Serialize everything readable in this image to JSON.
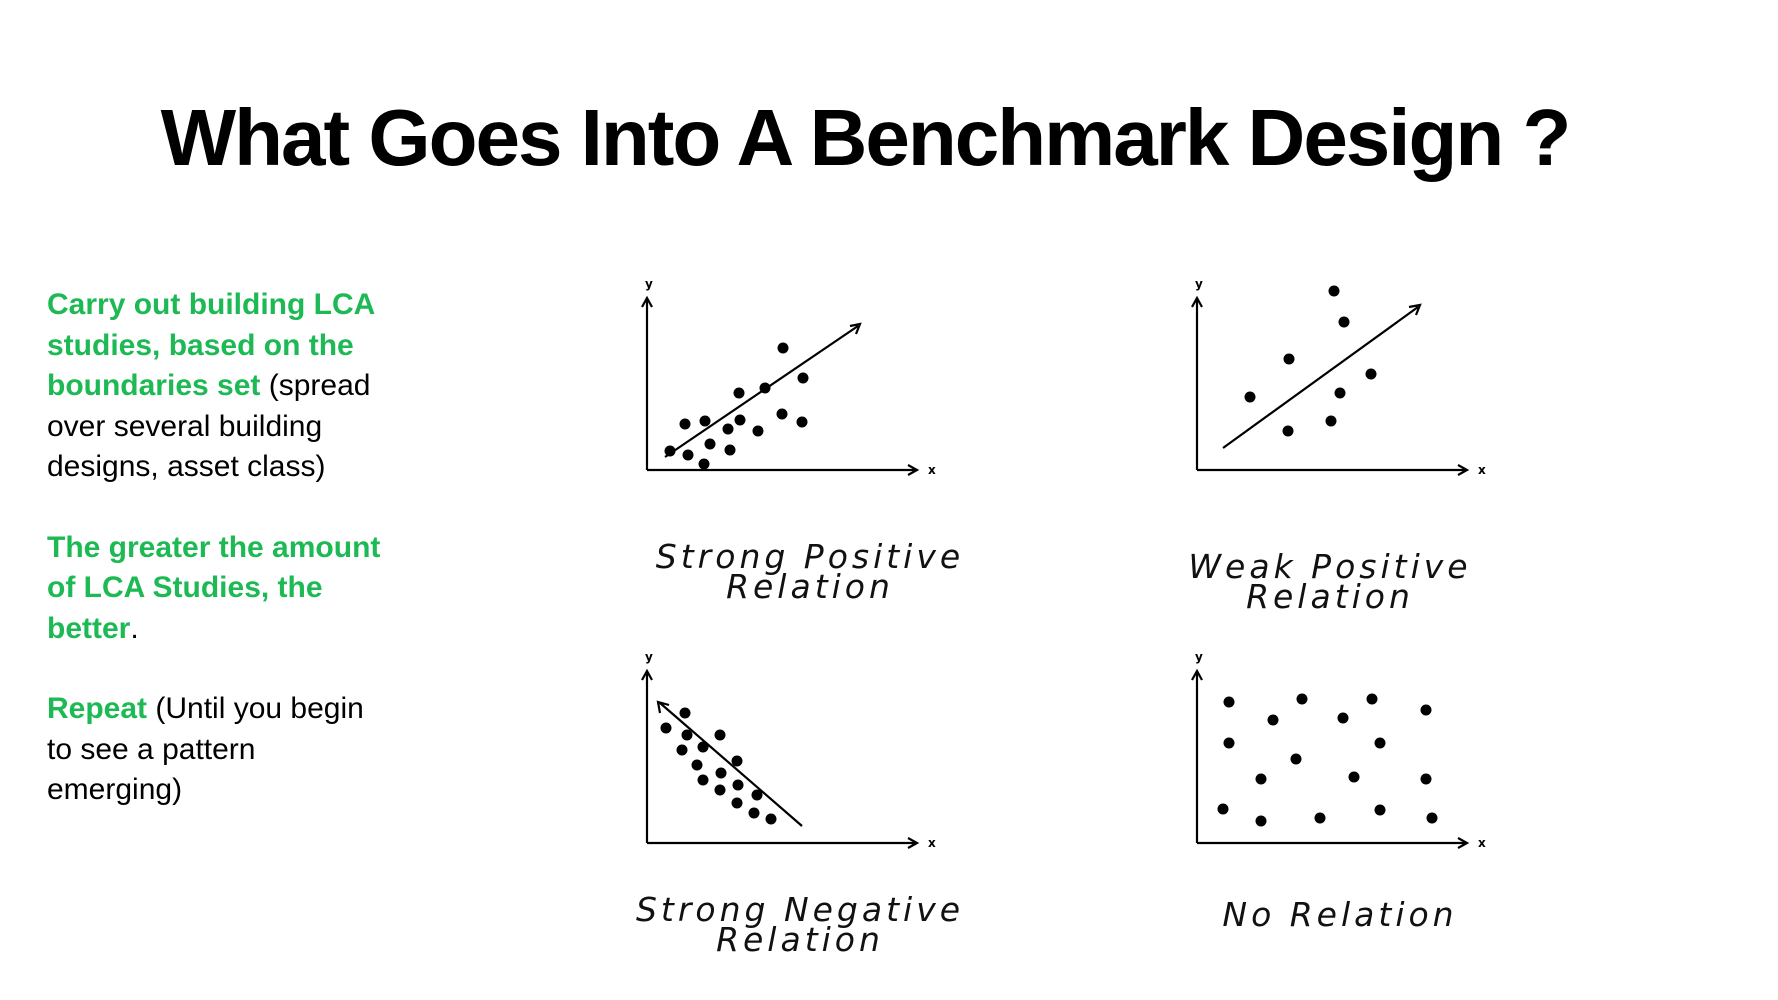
{
  "title": "What Goes Into A Benchmark Design ?",
  "body": {
    "p1_highlight": "Carry out building LCA studies, based on the boundaries set",
    "p1_rest": " (spread over several building designs, asset class)",
    "p2_highlight": "The greater the amount of LCA Studies, the better",
    "p2_rest": ".",
    "p3_highlight": "Repeat",
    "p3_rest": " (Until you begin to see a pattern emerging)"
  },
  "charts": {
    "strong_positive": {
      "caption_line1": "Strong Positive",
      "caption_line2": "Relation",
      "xlabel": "x",
      "ylabel": "y"
    },
    "weak_positive": {
      "caption_line1": "Weak Positive",
      "caption_line2": "Relation",
      "xlabel": "x",
      "ylabel": "y"
    },
    "strong_negative": {
      "caption_line1": "Strong Negative",
      "caption_line2": "Relation",
      "xlabel": "x",
      "ylabel": "y"
    },
    "no_relation": {
      "caption_line1": "No Relation",
      "xlabel": "x",
      "ylabel": "y"
    }
  },
  "colors": {
    "highlight": "#1db954",
    "text": "#000000"
  }
}
